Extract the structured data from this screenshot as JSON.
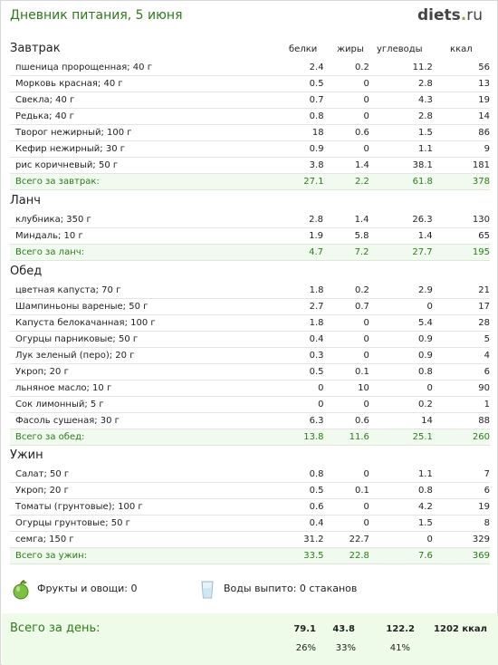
{
  "header": {
    "title": "Дневник питания, 5 июня",
    "logo_main": "diets",
    "logo_dot": ".",
    "logo_tld": "ru"
  },
  "columns": {
    "protein": "белки",
    "fat": "жиры",
    "carbs": "углеводы",
    "kcal": "ккал"
  },
  "meals": [
    {
      "name": "Завтрак",
      "items": [
        [
          "пшеница пророщенная; 40 г",
          "2.4",
          "0.2",
          "11.2",
          "56"
        ],
        [
          "Морковь красная; 40 г",
          "0.5",
          "0",
          "2.8",
          "13"
        ],
        [
          "Свекла; 40 г",
          "0.7",
          "0",
          "4.3",
          "19"
        ],
        [
          "Редька; 40 г",
          "0.8",
          "0",
          "2.8",
          "14"
        ],
        [
          "Творог нежирный; 100 г",
          "18",
          "0.6",
          "1.5",
          "86"
        ],
        [
          "Кефир нежирный; 30 г",
          "0.9",
          "0",
          "1.1",
          "9"
        ],
        [
          "рис коричневый; 50 г",
          "3.8",
          "1.4",
          "38.1",
          "181"
        ]
      ],
      "total": [
        "Всего за завтрак:",
        "27.1",
        "2.2",
        "61.8",
        "378"
      ]
    },
    {
      "name": "Ланч",
      "items": [
        [
          "клубника; 350 г",
          "2.8",
          "1.4",
          "26.3",
          "130"
        ],
        [
          "Миндаль; 10 г",
          "1.9",
          "5.8",
          "1.4",
          "65"
        ]
      ],
      "total": [
        "Всего за ланч:",
        "4.7",
        "7.2",
        "27.7",
        "195"
      ]
    },
    {
      "name": "Обед",
      "items": [
        [
          "цветная капуста; 70 г",
          "1.8",
          "0.2",
          "2.9",
          "21"
        ],
        [
          "Шампиньоны вареные; 50 г",
          "2.7",
          "0.7",
          "0",
          "17"
        ],
        [
          "Капуста белокачанная; 100 г",
          "1.8",
          "0",
          "5.4",
          "28"
        ],
        [
          "Огурцы парниковые; 50 г",
          "0.4",
          "0",
          "0.9",
          "5"
        ],
        [
          "Лук зеленый (перо); 20 г",
          "0.3",
          "0",
          "0.9",
          "4"
        ],
        [
          "Укроп; 20 г",
          "0.5",
          "0.1",
          "0.8",
          "6"
        ],
        [
          "льняное масло; 10 г",
          "0",
          "10",
          "0",
          "90"
        ],
        [
          "Сок лимонный; 5 г",
          "0",
          "0",
          "0.2",
          "1"
        ],
        [
          "Фасоль сушеная; 30 г",
          "6.3",
          "0.6",
          "14",
          "88"
        ]
      ],
      "total": [
        "Всего за обед:",
        "13.8",
        "11.6",
        "25.1",
        "260"
      ]
    },
    {
      "name": "Ужин",
      "items": [
        [
          "Салат; 50 г",
          "0.8",
          "0",
          "1.1",
          "7"
        ],
        [
          "Укроп; 20 г",
          "0.5",
          "0.1",
          "0.8",
          "6"
        ],
        [
          "Томаты (грунтовые); 100 г",
          "0.6",
          "0",
          "4.2",
          "19"
        ],
        [
          "Огурцы грунтовые; 50 г",
          "0.4",
          "0",
          "1.5",
          "8"
        ],
        [
          "семга; 150 г",
          "31.2",
          "22.7",
          "0",
          "329"
        ]
      ],
      "total": [
        "Всего за ужин:",
        "33.5",
        "22.8",
        "7.6",
        "369"
      ]
    }
  ],
  "extras": {
    "fruits_label": "Фрукты и овощи: 0",
    "water_label": "Воды выпито: 0 стаканов",
    "fruits_icon": "apple-icon",
    "water_icon": "glass-icon"
  },
  "day_total": {
    "label": "Всего за день:",
    "protein": "79.1",
    "fat": "43.8",
    "carbs": "122.2",
    "kcal": "1202 ккал",
    "protein_pct": "26%",
    "fat_pct": "33%",
    "carbs_pct": "41%"
  }
}
